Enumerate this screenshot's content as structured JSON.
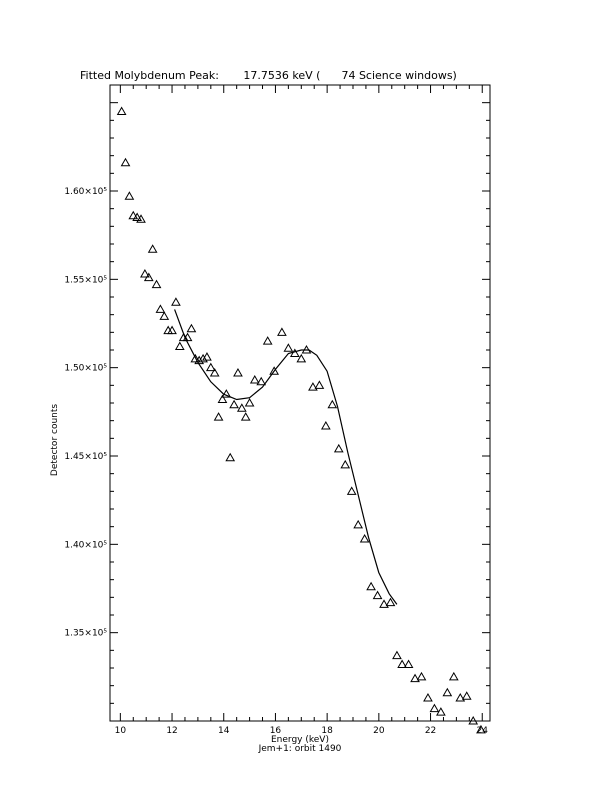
{
  "chart_data": {
    "type": "scatter",
    "title": "Fitted Molybdenum Peak:       17.7536 keV (      74 Science windows)",
    "xlabel": "Energy (keV)",
    "ylabel": "Detector counts",
    "footer": "Jem+1: orbit 1490",
    "xlim": [
      9.6,
      24.3
    ],
    "ylim": [
      130000,
      166000
    ],
    "x_ticks": [
      10,
      12,
      14,
      16,
      18,
      20,
      22,
      24
    ],
    "y_ticks": [
      {
        "value": 135000,
        "label": "1.35×10⁵"
      },
      {
        "value": 140000,
        "label": "1.40×10⁵"
      },
      {
        "value": 145000,
        "label": "1.45×10⁵"
      },
      {
        "value": 150000,
        "label": "1.50×10⁵"
      },
      {
        "value": 155000,
        "label": "1.55×10⁵"
      },
      {
        "value": 160000,
        "label": "1.60×10⁵"
      }
    ],
    "series": [
      {
        "marker": "triangle",
        "x": [
          10.05,
          10.2,
          10.35,
          10.5,
          10.65,
          10.8,
          10.95,
          11.1,
          11.25,
          11.4,
          11.55,
          11.7,
          11.85,
          12.0,
          12.15,
          12.3,
          12.45,
          12.6,
          12.75,
          12.9,
          13.05,
          13.2,
          13.35,
          13.5,
          13.65,
          13.8,
          13.95,
          14.1,
          14.25,
          14.4,
          14.55,
          14.7,
          14.85,
          15.0,
          15.2,
          15.45,
          15.7,
          15.95,
          16.25,
          16.5,
          16.75,
          17.0,
          17.2,
          17.45,
          17.7,
          17.95,
          18.2,
          18.45,
          18.7,
          18.95,
          19.2,
          19.45,
          19.7,
          19.95,
          20.2,
          20.45,
          20.7,
          20.9,
          21.15,
          21.4,
          21.65,
          21.9,
          22.15,
          22.4,
          22.65,
          22.9,
          23.15,
          23.4,
          23.65,
          23.95
        ],
        "y": [
          164500,
          161600,
          159700,
          158600,
          158500,
          158400,
          155300,
          155100,
          156700,
          154700,
          153300,
          152900,
          152100,
          152100,
          153700,
          151200,
          151700,
          151700,
          152200,
          150500,
          150400,
          150500,
          150600,
          150000,
          149700,
          147200,
          148200,
          148500,
          144900,
          147900,
          149700,
          147700,
          147200,
          148000,
          149300,
          149200,
          151500,
          149800,
          152000,
          151100,
          150800,
          150500,
          151000,
          148900,
          149000,
          146700,
          147900,
          145400,
          144500,
          143000,
          141100,
          140300,
          137600,
          137100,
          136600,
          136700,
          133700,
          133200,
          133200,
          132400,
          132500,
          131300,
          130700,
          130500,
          131600,
          132500,
          131300,
          131400,
          130000,
          129500
        ]
      },
      {
        "type": "line",
        "x": [
          12.1,
          12.5,
          13.0,
          13.5,
          14.0,
          14.5,
          15.0,
          15.5,
          16.0,
          16.5,
          17.0,
          17.3,
          17.6,
          18.0,
          18.4,
          18.8,
          19.2,
          19.6,
          20.0,
          20.4,
          20.7
        ],
        "y": [
          153300,
          151700,
          150300,
          149200,
          148500,
          148200,
          148300,
          148900,
          149900,
          150800,
          151000,
          151000,
          150700,
          149800,
          147800,
          145200,
          142800,
          140400,
          138400,
          137200,
          136600
        ]
      }
    ],
    "grid": false,
    "legend": "none"
  }
}
